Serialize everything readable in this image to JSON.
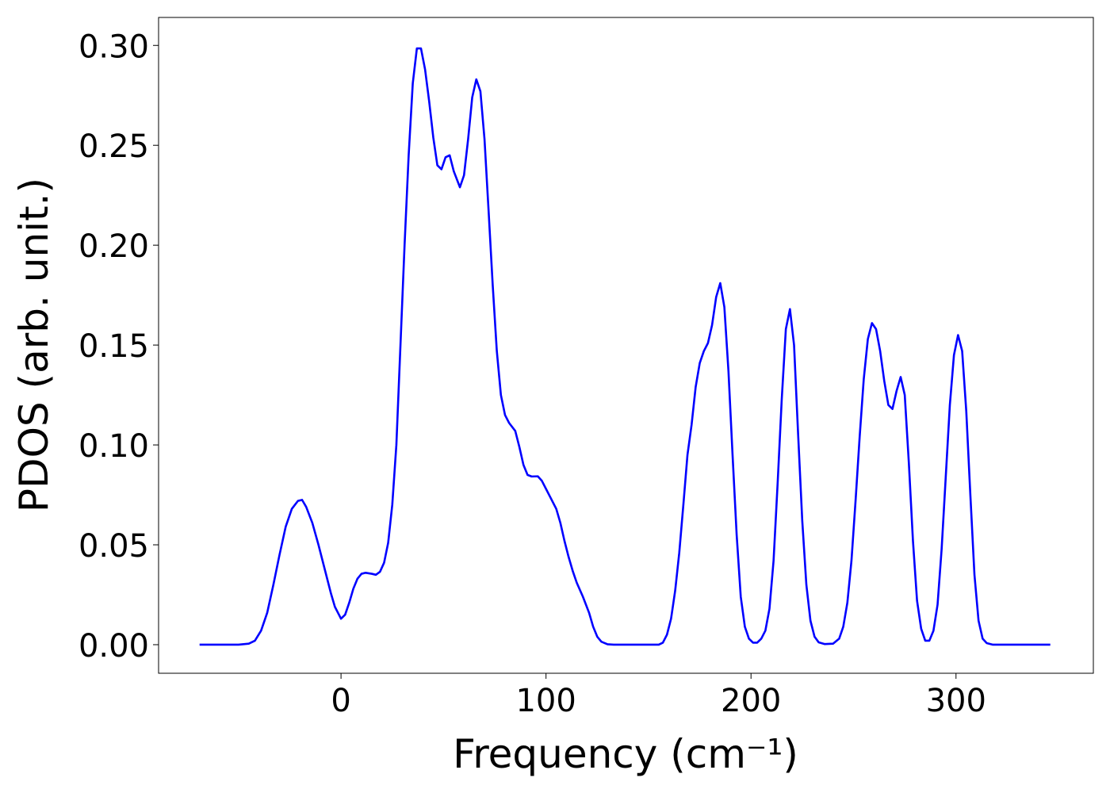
{
  "chart_data": {
    "type": "line",
    "xlabel": "Frequency (cm⁻¹)",
    "ylabel": "PDOS (arb. unit.)",
    "x": [
      -69,
      -50,
      -45,
      -42,
      -39,
      -36,
      -33,
      -30,
      -27,
      -24,
      -21,
      -19,
      -17,
      -14,
      -11,
      -8,
      -5,
      -3,
      -1,
      0,
      2,
      4,
      6,
      8,
      10,
      12,
      15,
      17,
      19,
      21,
      23,
      25,
      27,
      29,
      31,
      33,
      35,
      37,
      39,
      41,
      43,
      45,
      47,
      49,
      51,
      53,
      55,
      58,
      60,
      62,
      64,
      66,
      68,
      70,
      72,
      74,
      76,
      78,
      80,
      82,
      85,
      87,
      89,
      91,
      93,
      96,
      98,
      100,
      102,
      105,
      107,
      109,
      111,
      113,
      115,
      118,
      121,
      123,
      125,
      127,
      130,
      133,
      155,
      157,
      159,
      161,
      163,
      165,
      167,
      169,
      171,
      173,
      175,
      177,
      179,
      181,
      183,
      185,
      187,
      189,
      191,
      193,
      195,
      197,
      199,
      201,
      203,
      205,
      207,
      209,
      211,
      213,
      215,
      217,
      219,
      221,
      223,
      225,
      227,
      229,
      231,
      233,
      236,
      240,
      243,
      245,
      247,
      249,
      251,
      253,
      255,
      257,
      259,
      261,
      263,
      265,
      267,
      269,
      271,
      273,
      275,
      277,
      279,
      281,
      283,
      285,
      287,
      289,
      291,
      293,
      295,
      297,
      299,
      301,
      303,
      305,
      307,
      309,
      311,
      313,
      315,
      318,
      346
    ],
    "series": [
      {
        "color": "#0000ff",
        "values": [
          0,
          0,
          0.0005,
          0.002,
          0.007,
          0.016,
          0.03,
          0.045,
          0.059,
          0.068,
          0.072,
          0.0725,
          0.069,
          0.061,
          0.05,
          0.038,
          0.026,
          0.019,
          0.015,
          0.013,
          0.015,
          0.021,
          0.028,
          0.033,
          0.0355,
          0.036,
          0.0355,
          0.035,
          0.0365,
          0.041,
          0.051,
          0.07,
          0.1,
          0.15,
          0.2,
          0.245,
          0.281,
          0.2985,
          0.2985,
          0.288,
          0.272,
          0.254,
          0.24,
          0.238,
          0.244,
          0.245,
          0.237,
          0.229,
          0.235,
          0.253,
          0.274,
          0.283,
          0.277,
          0.253,
          0.217,
          0.18,
          0.147,
          0.125,
          0.115,
          0.111,
          0.107,
          0.099,
          0.09,
          0.085,
          0.0842,
          0.0843,
          0.082,
          0.078,
          0.074,
          0.068,
          0.061,
          0.052,
          0.044,
          0.037,
          0.031,
          0.024,
          0.016,
          0.009,
          0.004,
          0.0015,
          0.0002,
          0,
          0,
          0.001,
          0.005,
          0.013,
          0.027,
          0.046,
          0.07,
          0.095,
          0.11,
          0.129,
          0.141,
          0.147,
          0.151,
          0.16,
          0.174,
          0.181,
          0.169,
          0.137,
          0.095,
          0.055,
          0.024,
          0.009,
          0.003,
          0.001,
          0.001,
          0.003,
          0.007,
          0.018,
          0.042,
          0.081,
          0.123,
          0.158,
          0.168,
          0.15,
          0.105,
          0.062,
          0.03,
          0.012,
          0.004,
          0.0012,
          0.0003,
          0.0005,
          0.003,
          0.009,
          0.021,
          0.042,
          0.072,
          0.104,
          0.133,
          0.153,
          0.161,
          0.158,
          0.147,
          0.132,
          0.12,
          0.118,
          0.127,
          0.134,
          0.125,
          0.091,
          0.052,
          0.022,
          0.008,
          0.002,
          0.002,
          0.007,
          0.02,
          0.048,
          0.084,
          0.12,
          0.145,
          0.155,
          0.147,
          0.117,
          0.075,
          0.035,
          0.012,
          0.003,
          0.0008,
          0,
          0
        ]
      }
    ],
    "xlim": [
      -89,
      367
    ],
    "ylim": [
      -0.0143,
      0.314
    ],
    "xticks": [
      0,
      100,
      200,
      300
    ],
    "yticks": [
      {
        "value": 0,
        "label": "0.00"
      },
      {
        "value": 0.05,
        "label": "0.05"
      },
      {
        "value": 0.1,
        "label": "0.10"
      },
      {
        "value": 0.15,
        "label": "0.15"
      },
      {
        "value": 0.2,
        "label": "0.20"
      },
      {
        "value": 0.25,
        "label": "0.25"
      },
      {
        "value": 0.3,
        "label": "0.30"
      }
    ]
  }
}
